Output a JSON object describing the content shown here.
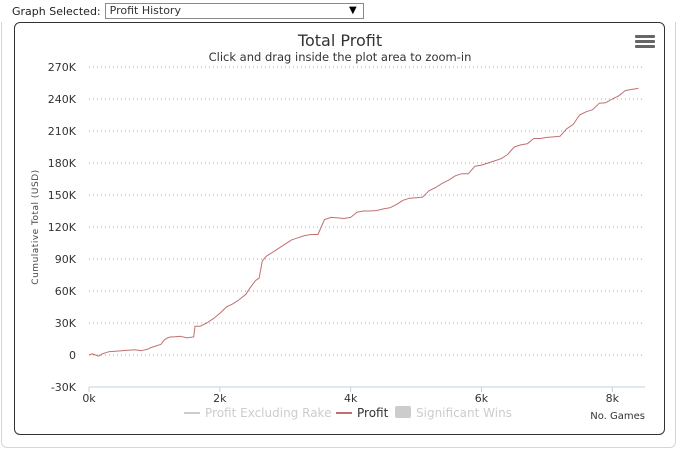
{
  "topbar": {
    "label": "Graph Selected:",
    "selected": "Profit History",
    "arrow": "▼"
  },
  "menu_icon": "hamburger-menu-icon",
  "chart_data": {
    "type": "line",
    "title": "Total Profit",
    "subtitle": "Click and drag inside the plot area to zoom-in",
    "ylabel": "Cumulative Total (USD)",
    "xlabel": "No. Games",
    "ylim": [
      -30000,
      270000
    ],
    "xlim": [
      0,
      8500
    ],
    "y_ticks": [
      -30000,
      0,
      30000,
      60000,
      90000,
      120000,
      150000,
      180000,
      210000,
      240000,
      270000
    ],
    "y_tick_labels": [
      "-30K",
      "0",
      "30K",
      "60K",
      "90K",
      "120K",
      "150K",
      "180K",
      "210K",
      "240K",
      "270K"
    ],
    "x_ticks": [
      0,
      2000,
      4000,
      6000,
      8000
    ],
    "x_tick_labels": [
      "0k",
      "2k",
      "4k",
      "6k",
      "8k"
    ],
    "grid": "horizontal-dotted",
    "legend_position": "bottom-center",
    "legend": [
      {
        "name": "Profit Excluding Rake",
        "color": "#cccccc",
        "symbol": "line",
        "active": false
      },
      {
        "name": "Profit",
        "color": "#c07070",
        "symbol": "line",
        "active": true
      },
      {
        "name": "Significant Wins",
        "color": "#cccccc",
        "symbol": "box",
        "active": false
      }
    ],
    "series": [
      {
        "name": "Profit",
        "color": "#c07070",
        "x": [
          0,
          50,
          150,
          200,
          300,
          400,
          500,
          600,
          700,
          800,
          900,
          950,
          1000,
          1100,
          1150,
          1200,
          1250,
          1300,
          1400,
          1500,
          1600,
          1620,
          1700,
          1800,
          1900,
          2000,
          2100,
          2200,
          2300,
          2400,
          2450,
          2500,
          2550,
          2600,
          2650,
          2700,
          2720,
          2800,
          2900,
          3000,
          3050,
          3100,
          3200,
          3300,
          3400,
          3500,
          3600,
          3650,
          3700,
          3800,
          3900,
          4000,
          4100,
          4200,
          4300,
          4400,
          4500,
          4600,
          4700,
          4800,
          4900,
          5000,
          5100,
          5200,
          5300,
          5400,
          5500,
          5600,
          5700,
          5800,
          5900,
          6000,
          6100,
          6200,
          6300,
          6400,
          6500,
          6600,
          6700,
          6800,
          6900,
          7000,
          7100,
          7200,
          7300,
          7400,
          7500,
          7600,
          7700,
          7800,
          7900,
          8000,
          8100,
          8200,
          8300,
          8400
        ],
        "values": [
          0,
          1000,
          -1000,
          1000,
          3000,
          3500,
          4000,
          4500,
          5000,
          4000,
          5500,
          7000,
          8000,
          10000,
          14000,
          16000,
          17000,
          17000,
          17500,
          16000,
          17000,
          27000,
          27000,
          30000,
          34000,
          39000,
          45000,
          48000,
          52000,
          57000,
          62000,
          66000,
          70000,
          72000,
          88000,
          92000,
          93000,
          96000,
          100000,
          104000,
          106000,
          108000,
          110000,
          112000,
          113000,
          113000,
          127000,
          128000,
          129000,
          128500,
          128000,
          129000,
          134000,
          135000,
          135000,
          135500,
          137000,
          138000,
          141000,
          145000,
          147000,
          147500,
          148000,
          154000,
          157000,
          161000,
          164000,
          168000,
          170000,
          170000,
          177000,
          178000,
          180000,
          182000,
          184000,
          188000,
          195000,
          197000,
          198000,
          203000,
          203000,
          204000,
          204500,
          205000,
          212000,
          216000,
          225000,
          228000,
          230000,
          236000,
          236500,
          240000,
          243000,
          248000,
          249000,
          250000
        ]
      }
    ]
  }
}
